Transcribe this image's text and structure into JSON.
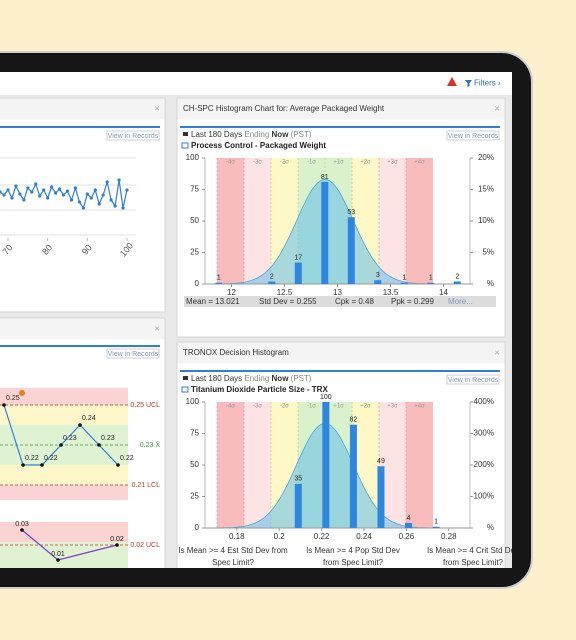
{
  "toolbar": {
    "filters": "Filters ›"
  },
  "panels": [
    {
      "view_link": "View in Records",
      "chart": {
        "type": "line",
        "x": [
          68,
          69,
          70,
          71,
          72,
          73,
          74,
          75,
          76,
          77,
          78,
          79,
          80,
          81,
          82,
          83,
          84,
          85,
          86,
          87,
          88,
          89,
          90,
          91,
          92,
          93,
          94,
          95,
          96,
          97,
          98,
          99,
          100
        ],
        "values": [
          58,
          55,
          60,
          52,
          64,
          56,
          50,
          62,
          58,
          66,
          54,
          60,
          52,
          63,
          57,
          61,
          55,
          59,
          50,
          62,
          48,
          42,
          56,
          52,
          60,
          46,
          55,
          68,
          50,
          44,
          70,
          42,
          60
        ],
        "ylim": [
          0,
          100
        ],
        "xlim": [
          68,
          101
        ],
        "xticks": [
          70,
          80,
          90,
          100
        ]
      }
    },
    {
      "view_link": "View in Records",
      "chart": {
        "type": "control",
        "values": [
          0.25,
          0.22,
          0.22,
          0.23,
          0.24,
          0.23,
          0.22
        ],
        "limits": [
          {
            "value": 0.25,
            "label": "0.25 UCL"
          },
          {
            "value": 0.23,
            "label": "0.23 X̄"
          },
          {
            "value": 0.21,
            "label": "0.21 LCL"
          }
        ],
        "ylim": [
          0.2,
          0.26
        ],
        "range_values": [
          0.03,
          0.01,
          0.02
        ],
        "range_limit": {
          "value": 0.02,
          "label": "0.02 UCL"
        },
        "range_ylim": [
          0,
          0.04
        ]
      }
    },
    {
      "title": "CH-SPC Histogram Chart for: Average Packaged Weight",
      "view_link": "View in Records",
      "period": "Last 180 Days",
      "ending": "Ending",
      "now": "Now",
      "tz": "(PST)",
      "subtitle": "Process Control - Packaged Weight",
      "chart": {
        "type": "histogram",
        "x": [
          11.88,
          12.38,
          12.63,
          12.88,
          13.13,
          13.38,
          13.63,
          13.88,
          14.13
        ],
        "values": [
          1,
          2,
          17,
          81,
          53,
          3,
          1,
          1,
          2
        ],
        "xlim": [
          11.75,
          14.25
        ],
        "xticks": [
          12,
          12.5,
          13,
          13.5,
          14
        ],
        "ylim": [
          0,
          100
        ],
        "yticks": [
          0,
          25,
          50,
          75,
          100
        ],
        "y2lim": [
          0,
          20
        ],
        "y2ticks": [
          {
            "value": 0,
            "label": "%"
          },
          {
            "value": 5,
            "label": "5%"
          },
          {
            "value": 10,
            "label": "10%"
          },
          {
            "value": 15,
            "label": "15%"
          },
          {
            "value": 20,
            "label": "20%"
          }
        ],
        "sigma_labels": [
          "-4σ",
          "-3σ",
          "-2σ",
          "-1σ",
          "+1σ",
          "+2σ",
          "+3σ",
          "+4σ"
        ]
      },
      "stats": [
        "Mean = 13.021",
        "Std Dev = 0.255",
        "Cpk = 0.48",
        "Ppk = 0.299",
        "More..."
      ]
    },
    {
      "title": "TRONOX Decision Histogram",
      "view_link": "View in Records",
      "period": "Last 180 Days",
      "ending": "Ending",
      "now": "Now",
      "tz": "(PST)",
      "subtitle": "Titanium Dioxide Particle Size - TRX",
      "chart": {
        "type": "histogram",
        "x": [
          0.209,
          0.222,
          0.235,
          0.248,
          0.261,
          0.274
        ],
        "values": [
          35,
          100,
          82,
          49,
          4,
          1
        ],
        "xlim": [
          0.165,
          0.29
        ],
        "xticks": [
          0.18,
          0.2,
          0.22,
          0.24,
          0.26,
          0.28
        ],
        "ylim": [
          0,
          100
        ],
        "yticks": [
          0,
          25,
          50,
          75,
          100
        ],
        "y2lim": [
          0,
          400
        ],
        "y2ticks": [
          {
            "value": 0,
            "label": "%"
          },
          {
            "value": 100,
            "label": "100%"
          },
          {
            "value": 200,
            "label": "200%"
          },
          {
            "value": 300,
            "label": "300%"
          },
          {
            "value": 400,
            "label": "400%"
          }
        ],
        "sigma_labels": [
          "-4σ",
          "-3σ",
          "-2σ",
          "-1σ",
          "+1σ",
          "+2σ",
          "+3σ",
          "+4σ"
        ]
      },
      "questions": [
        [
          "Is Mean >= 4 Est Std Dev from",
          "Spec Limit?"
        ],
        [
          "Is Mean >= 4 Pop Std Dev",
          "from Spec Limit?"
        ],
        [
          "Is Mean >= 4 Crit Std Dev",
          "from Spec Limit?"
        ]
      ]
    }
  ]
}
